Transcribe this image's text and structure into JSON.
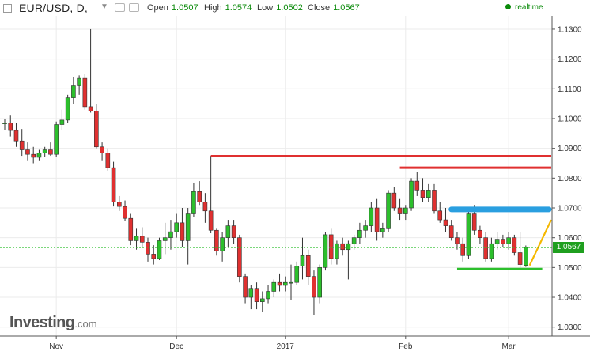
{
  "toolbar": {
    "symbol": "EUR/USD, D,",
    "open_label": "Open",
    "open_value": "1.0507",
    "high_label": "High",
    "high_value": "1.0574",
    "low_label": "Low",
    "low_value": "1.0502",
    "close_label": "Close",
    "close_value": "1.0567",
    "realtime_label": "realtime"
  },
  "brand": {
    "name": "Investing",
    "suffix": ".com"
  },
  "price_tag": "1.0567",
  "colors": {
    "up": "#2cbf2c",
    "down": "#e03030",
    "resistance": "#e03030",
    "zone": "#2a9fe0",
    "support": "#2cbf2c",
    "projection": "#f5b800"
  },
  "chart_data": {
    "type": "candlestick",
    "y_ticks": [
      "1.1300",
      "1.1200",
      "1.1100",
      "1.1000",
      "1.0900",
      "1.0800",
      "1.0700",
      "1.0600",
      "1.0500",
      "1.0400",
      "1.0300"
    ],
    "x_ticks": [
      "Nov",
      "Dec",
      "2017",
      "Feb",
      "Mar"
    ],
    "ylim": [
      1.027,
      1.1345
    ],
    "last_price": 1.0567,
    "candles": [
      [
        1.0985,
        1.1,
        1.096,
        1.0985
      ],
      [
        1.0985,
        1.101,
        1.094,
        1.096
      ],
      [
        1.096,
        1.0985,
        1.0905,
        1.0925
      ],
      [
        1.0925,
        1.0965,
        1.0875,
        1.0895
      ],
      [
        1.0895,
        1.092,
        1.086,
        1.088
      ],
      [
        1.088,
        1.0905,
        1.085,
        1.087
      ],
      [
        1.087,
        1.0895,
        1.086,
        1.0885
      ],
      [
        1.0885,
        1.0905,
        1.087,
        1.0895
      ],
      [
        1.0895,
        1.092,
        1.0875,
        1.088
      ],
      [
        1.088,
        1.099,
        1.087,
        1.098
      ],
      [
        1.098,
        1.103,
        1.096,
        1.0995
      ],
      [
        1.0995,
        1.108,
        1.0985,
        1.107
      ],
      [
        1.107,
        1.114,
        1.105,
        1.111
      ],
      [
        1.111,
        1.1145,
        1.108,
        1.1135
      ],
      [
        1.1135,
        1.115,
        1.103,
        1.104
      ],
      [
        1.104,
        1.13,
        1.102,
        1.1025
      ],
      [
        1.1025,
        1.105,
        1.09,
        1.0905
      ],
      [
        1.0905,
        1.092,
        1.086,
        1.0885
      ],
      [
        1.0885,
        1.09,
        1.0825,
        1.0835
      ],
      [
        1.0835,
        1.0855,
        1.0705,
        1.072
      ],
      [
        1.072,
        1.074,
        1.069,
        1.0705
      ],
      [
        1.0705,
        1.0725,
        1.0655,
        1.0665
      ],
      [
        1.0665,
        1.068,
        1.0575,
        1.059
      ],
      [
        1.059,
        1.063,
        1.056,
        1.0605
      ],
      [
        1.0605,
        1.0635,
        1.057,
        1.0585
      ],
      [
        1.0585,
        1.06,
        1.052,
        1.0545
      ],
      [
        1.0545,
        1.0575,
        1.051,
        1.053
      ],
      [
        1.053,
        1.06,
        1.0525,
        1.059
      ],
      [
        1.059,
        1.065,
        1.0545,
        1.06
      ],
      [
        1.06,
        1.066,
        1.056,
        1.062
      ],
      [
        1.062,
        1.068,
        1.06,
        1.065
      ],
      [
        1.065,
        1.07,
        1.057,
        1.059
      ],
      [
        1.059,
        1.07,
        1.051,
        1.068
      ],
      [
        1.068,
        1.0785,
        1.067,
        1.0755
      ],
      [
        1.0755,
        1.079,
        1.071,
        1.072
      ],
      [
        1.072,
        1.075,
        1.065,
        1.069
      ],
      [
        1.069,
        1.0875,
        1.0615,
        1.0625
      ],
      [
        1.0625,
        1.063,
        1.054,
        1.0555
      ],
      [
        1.0555,
        1.062,
        1.052,
        1.06
      ],
      [
        1.06,
        1.066,
        1.057,
        1.064
      ],
      [
        1.064,
        1.066,
        1.058,
        1.06
      ],
      [
        1.06,
        1.061,
        1.045,
        1.047
      ],
      [
        1.047,
        1.048,
        1.038,
        1.04
      ],
      [
        1.04,
        1.044,
        1.036,
        1.043
      ],
      [
        1.043,
        1.045,
        1.036,
        1.0385
      ],
      [
        1.0385,
        1.042,
        1.035,
        1.0395
      ],
      [
        1.0395,
        1.044,
        1.038,
        1.042
      ],
      [
        1.042,
        1.046,
        1.04,
        1.045
      ],
      [
        1.045,
        1.048,
        1.042,
        1.044
      ],
      [
        1.044,
        1.047,
        1.042,
        1.045
      ],
      [
        1.045,
        1.051,
        1.039,
        1.045
      ],
      [
        1.045,
        1.052,
        1.044,
        1.0505
      ],
      [
        1.0505,
        1.06,
        1.046,
        1.054
      ],
      [
        1.054,
        1.056,
        1.044,
        1.047
      ],
      [
        1.047,
        1.049,
        1.034,
        1.04
      ],
      [
        1.04,
        1.051,
        1.038,
        1.05
      ],
      [
        1.05,
        1.062,
        1.049,
        1.061
      ],
      [
        1.061,
        1.063,
        1.051,
        1.053
      ],
      [
        1.053,
        1.059,
        1.051,
        1.058
      ],
      [
        1.058,
        1.06,
        1.054,
        1.056
      ],
      [
        1.056,
        1.059,
        1.046,
        1.058
      ],
      [
        1.058,
        1.061,
        1.056,
        1.06
      ],
      [
        1.06,
        1.065,
        1.058,
        1.0625
      ],
      [
        1.0625,
        1.066,
        1.06,
        1.064
      ],
      [
        1.064,
        1.072,
        1.062,
        1.07
      ],
      [
        1.07,
        1.073,
        1.059,
        1.062
      ],
      [
        1.062,
        1.065,
        1.06,
        1.063
      ],
      [
        1.063,
        1.076,
        1.062,
        1.075
      ],
      [
        1.075,
        1.077,
        1.069,
        1.07
      ],
      [
        1.07,
        1.073,
        1.066,
        1.068
      ],
      [
        1.068,
        1.071,
        1.066,
        1.07
      ],
      [
        1.07,
        1.08,
        1.069,
        1.079
      ],
      [
        1.079,
        1.082,
        1.074,
        1.076
      ],
      [
        1.076,
        1.08,
        1.072,
        1.0735
      ],
      [
        1.0735,
        1.078,
        1.072,
        1.076
      ],
      [
        1.076,
        1.078,
        1.068,
        1.069
      ],
      [
        1.069,
        1.072,
        1.065,
        1.066
      ],
      [
        1.066,
        1.07,
        1.062,
        1.064
      ],
      [
        1.064,
        1.066,
        1.059,
        1.06
      ],
      [
        1.06,
        1.062,
        1.056,
        1.058
      ],
      [
        1.058,
        1.06,
        1.052,
        1.054
      ],
      [
        1.054,
        1.07,
        1.053,
        1.068
      ],
      [
        1.068,
        1.071,
        1.061,
        1.0625
      ],
      [
        1.0625,
        1.064,
        1.058,
        1.06
      ],
      [
        1.06,
        1.062,
        1.052,
        1.053
      ],
      [
        1.053,
        1.06,
        1.052,
        1.058
      ],
      [
        1.058,
        1.062,
        1.056,
        1.0595
      ],
      [
        1.0595,
        1.061,
        1.057,
        1.058
      ],
      [
        1.058,
        1.062,
        1.056,
        1.06
      ],
      [
        1.06,
        1.061,
        1.054,
        1.055
      ],
      [
        1.055,
        1.062,
        1.05,
        1.051
      ],
      [
        1.0507,
        1.0574,
        1.0502,
        1.0567
      ]
    ],
    "annotations": {
      "resistance_1": {
        "from_bar": 36,
        "price": 1.0874
      },
      "resistance_2": {
        "from_bar": 69,
        "price": 1.0835
      },
      "zone": {
        "from_bar": 78,
        "price": 1.0695
      },
      "support": {
        "from_bar": 79,
        "to_bar": 90,
        "price": 1.0495
      },
      "projection": {
        "from_bar": 90,
        "from_price": 1.0507,
        "to_price": 1.066
      }
    }
  }
}
